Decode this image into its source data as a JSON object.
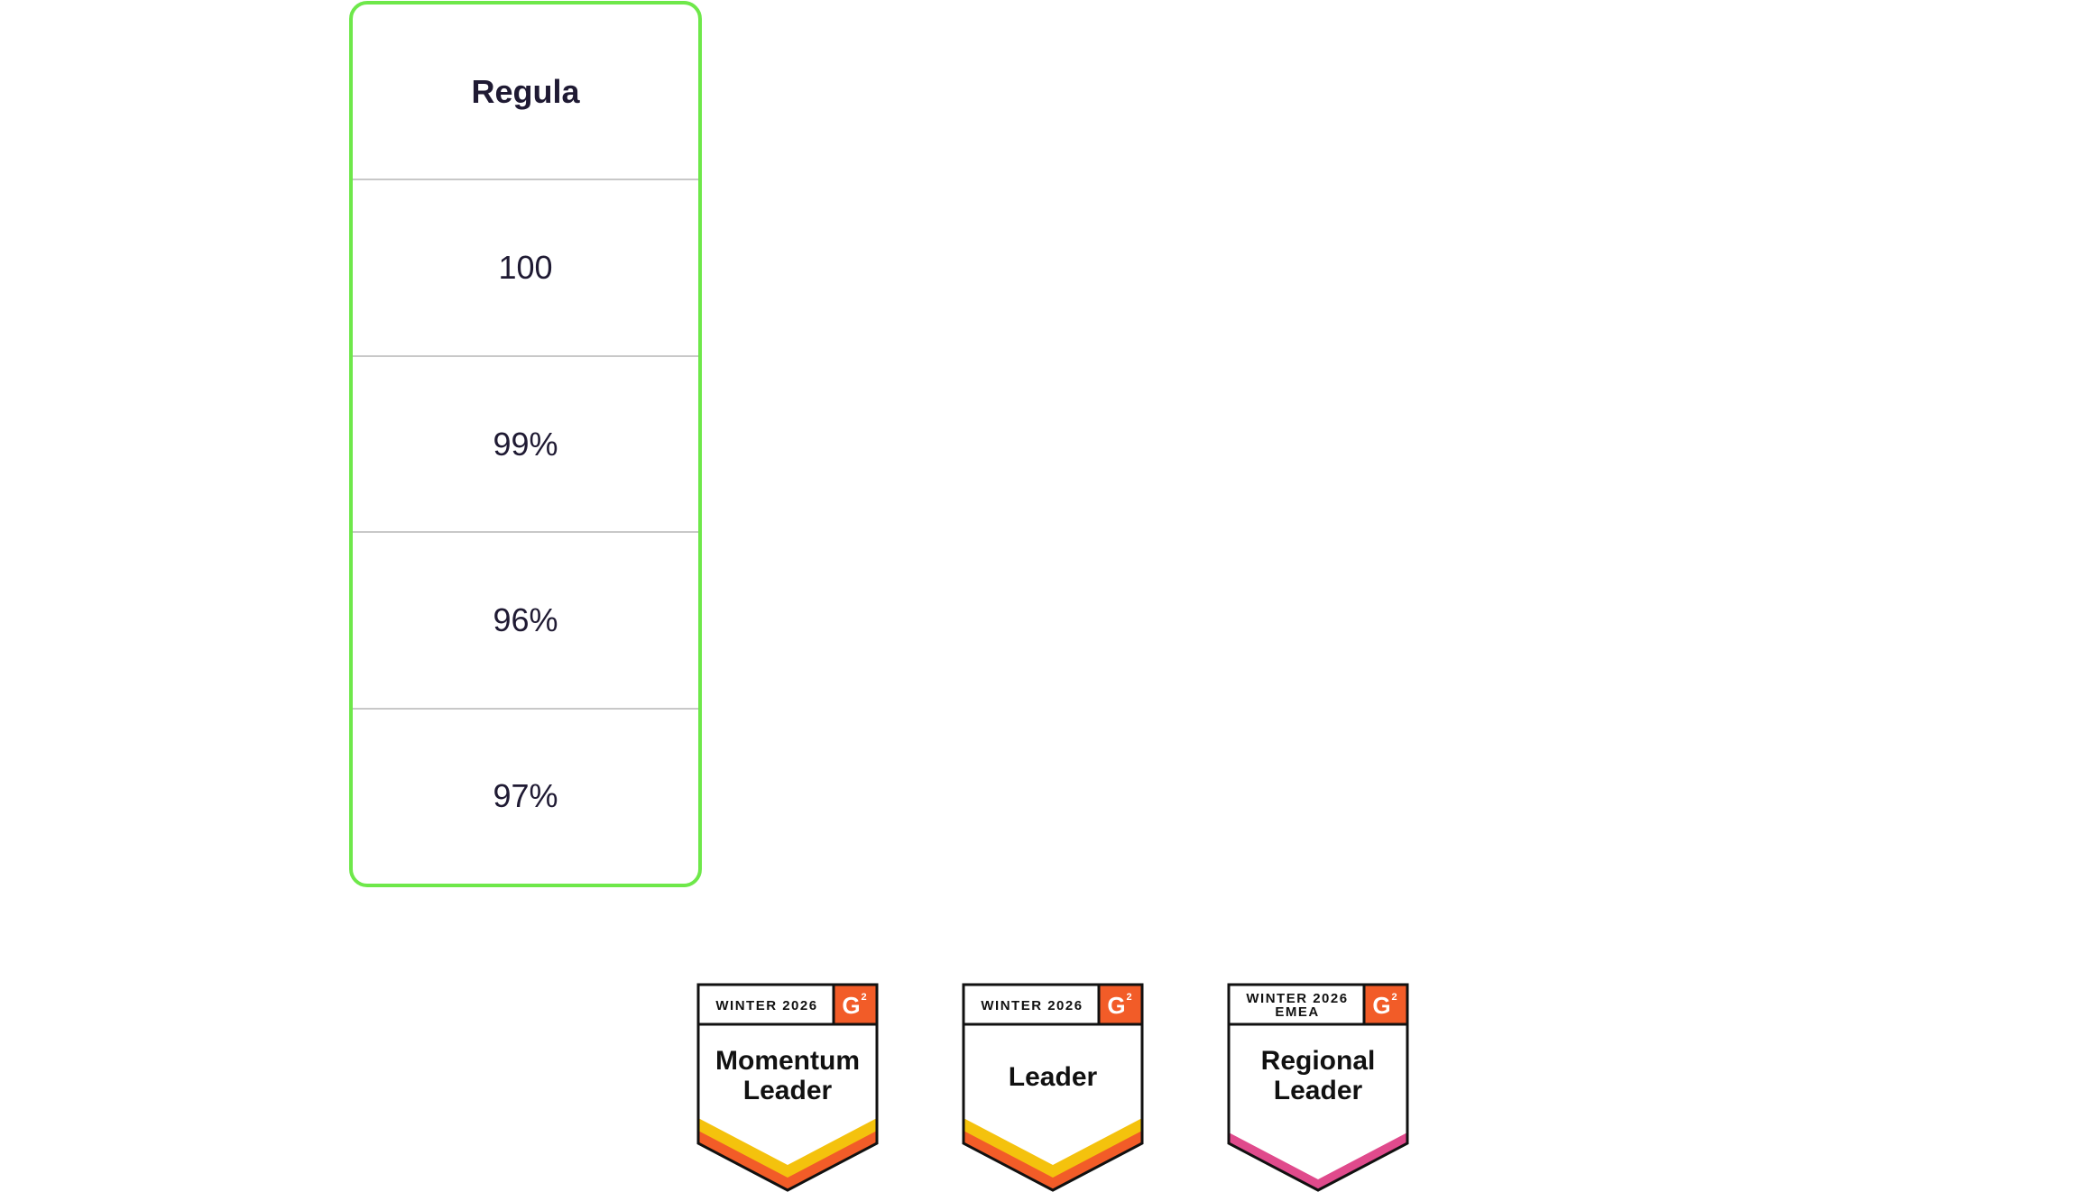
{
  "comparison": {
    "header": "Regula",
    "rows": [
      "100",
      "99%",
      "96%",
      "97%"
    ],
    "accent_color": "#6ee84a"
  },
  "badges": [
    {
      "season_lines": [
        "WINTER 2026"
      ],
      "title_lines": [
        "Momentum",
        "Leader"
      ],
      "logo": "G2",
      "ribbon_colors": [
        "#f4c20d",
        "#f25c28"
      ]
    },
    {
      "season_lines": [
        "WINTER 2026"
      ],
      "title_lines": [
        "Leader"
      ],
      "logo": "G2",
      "ribbon_colors": [
        "#f4c20d",
        "#f25c28"
      ]
    },
    {
      "season_lines": [
        "WINTER 2026",
        "EMEA"
      ],
      "title_lines": [
        "Regional",
        "Leader"
      ],
      "logo": "G2",
      "ribbon_colors": [
        "#e04a8c"
      ]
    }
  ]
}
